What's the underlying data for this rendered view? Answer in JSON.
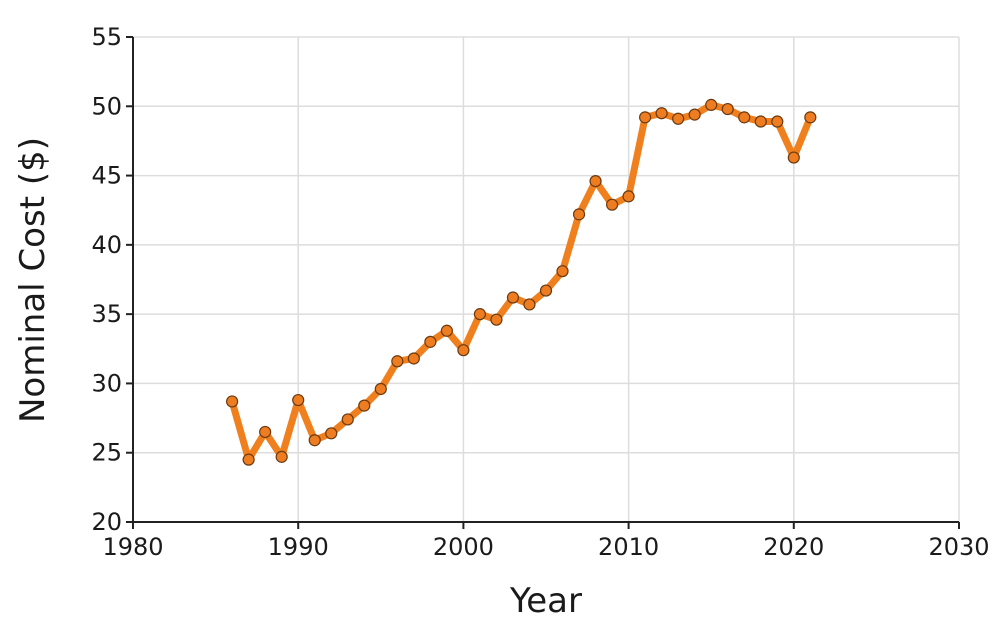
{
  "chart_data": {
    "type": "line",
    "title": "",
    "xlabel": "Year",
    "ylabel": "Nominal Cost ($)",
    "xlim": [
      1980,
      2030
    ],
    "ylim": [
      20,
      55
    ],
    "xticks": [
      1980,
      1990,
      2000,
      2010,
      2020,
      2030
    ],
    "yticks": [
      20,
      25,
      30,
      35,
      40,
      45,
      50,
      55
    ],
    "grid": true,
    "legend": "none",
    "colors": {
      "line": "#f07f1d",
      "marker": "#ee7d22",
      "marker_edge": "#6b3a10"
    },
    "series": [
      {
        "x": [
          1986,
          1987,
          1988,
          1989,
          1990,
          1991,
          1992,
          1993,
          1994,
          1995,
          1996,
          1997,
          1998,
          1999,
          2000,
          2001,
          2002,
          2003,
          2004,
          2005,
          2006,
          2007,
          2008,
          2009,
          2010,
          2011,
          2012,
          2013,
          2014,
          2015,
          2016,
          2017,
          2018,
          2019,
          2020,
          2021
        ],
        "values": [
          28.7,
          24.5,
          26.5,
          24.7,
          28.8,
          25.9,
          26.4,
          27.4,
          28.4,
          29.6,
          31.6,
          31.8,
          33.0,
          33.8,
          32.4,
          35.0,
          34.6,
          36.2,
          35.7,
          36.7,
          38.1,
          42.2,
          44.6,
          42.9,
          43.5,
          49.2,
          49.5,
          49.1,
          49.4,
          50.1,
          49.8,
          49.2,
          48.9,
          48.9,
          46.3,
          49.2
        ]
      }
    ]
  }
}
